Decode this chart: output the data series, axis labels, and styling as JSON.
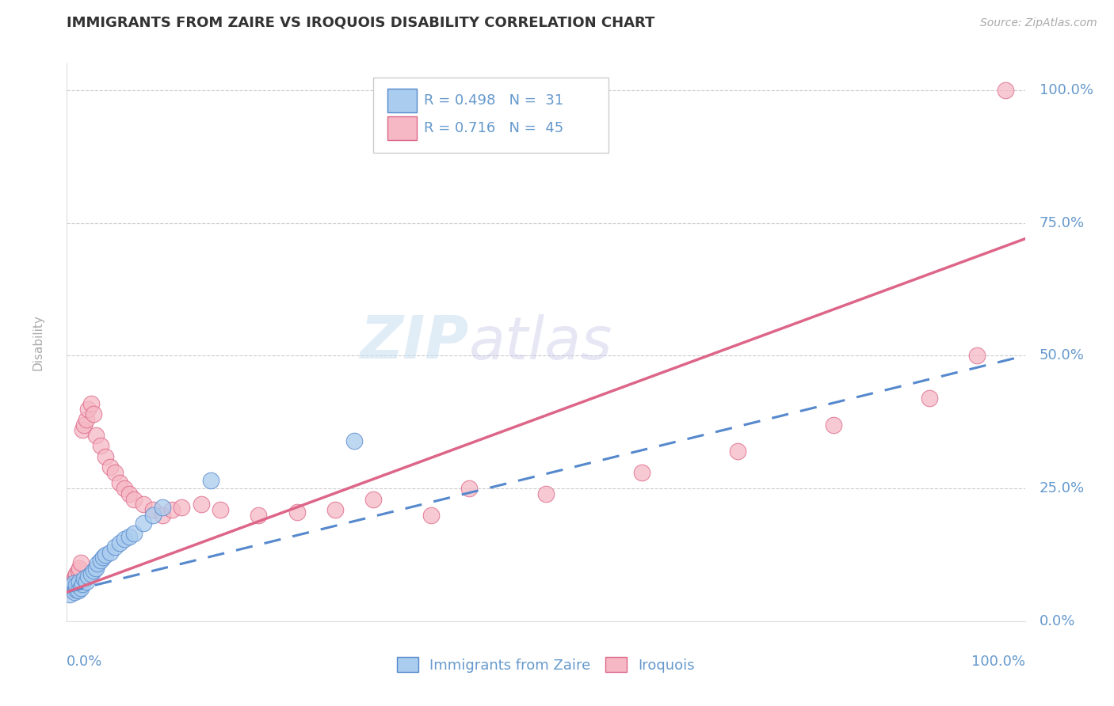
{
  "title": "IMMIGRANTS FROM ZAIRE VS IROQUOIS DISABILITY CORRELATION CHART",
  "source_text": "Source: ZipAtlas.com",
  "ylabel": "Disability",
  "xlim": [
    0,
    1
  ],
  "ylim": [
    0,
    1.05
  ],
  "ytick_labels": [
    "0.0%",
    "25.0%",
    "50.0%",
    "75.0%",
    "100.0%"
  ],
  "ytick_values": [
    0.0,
    0.25,
    0.5,
    0.75,
    1.0
  ],
  "xtick_labels": [
    "0.0%",
    "100.0%"
  ],
  "watermark_zip": "ZIP",
  "watermark_atlas": "atlas",
  "legend_r_blue": "R = 0.498",
  "legend_n_blue": "N =  31",
  "legend_r_pink": "R = 0.716",
  "legend_n_pink": "N =  45",
  "blue_scatter_color": "#aaccee",
  "pink_scatter_color": "#f5b8c4",
  "blue_line_color": "#5588cc",
  "pink_line_color": "#dd6688",
  "grid_color": "#cccccc",
  "bg_color": "#ffffff",
  "title_color": "#333333",
  "axis_color": "#6699cc",
  "blue_scatter_x": [
    0.003,
    0.005,
    0.007,
    0.008,
    0.01,
    0.01,
    0.012,
    0.013,
    0.015,
    0.016,
    0.018,
    0.02,
    0.022,
    0.025,
    0.028,
    0.03,
    0.032,
    0.035,
    0.038,
    0.04,
    0.045,
    0.05,
    0.055,
    0.06,
    0.065,
    0.07,
    0.08,
    0.09,
    0.1,
    0.15,
    0.3
  ],
  "blue_scatter_y": [
    0.05,
    0.065,
    0.072,
    0.055,
    0.06,
    0.068,
    0.058,
    0.075,
    0.062,
    0.07,
    0.08,
    0.075,
    0.085,
    0.09,
    0.095,
    0.1,
    0.108,
    0.115,
    0.12,
    0.125,
    0.13,
    0.14,
    0.148,
    0.155,
    0.16,
    0.165,
    0.185,
    0.2,
    0.215,
    0.265,
    0.34
  ],
  "pink_scatter_x": [
    0.002,
    0.004,
    0.005,
    0.006,
    0.008,
    0.009,
    0.01,
    0.012,
    0.013,
    0.015,
    0.016,
    0.018,
    0.02,
    0.022,
    0.025,
    0.028,
    0.03,
    0.035,
    0.04,
    0.045,
    0.05,
    0.055,
    0.06,
    0.065,
    0.07,
    0.08,
    0.09,
    0.1,
    0.11,
    0.12,
    0.14,
    0.16,
    0.2,
    0.24,
    0.28,
    0.32,
    0.38,
    0.42,
    0.5,
    0.6,
    0.7,
    0.8,
    0.9,
    0.95,
    0.98
  ],
  "pink_scatter_y": [
    0.06,
    0.065,
    0.068,
    0.075,
    0.08,
    0.085,
    0.09,
    0.095,
    0.1,
    0.11,
    0.36,
    0.37,
    0.38,
    0.4,
    0.41,
    0.39,
    0.35,
    0.33,
    0.31,
    0.29,
    0.28,
    0.26,
    0.25,
    0.24,
    0.23,
    0.22,
    0.21,
    0.2,
    0.21,
    0.215,
    0.22,
    0.21,
    0.2,
    0.205,
    0.21,
    0.23,
    0.2,
    0.25,
    0.24,
    0.28,
    0.32,
    0.37,
    0.42,
    0.5,
    1.0
  ],
  "blue_line_x": [
    0.0,
    1.0
  ],
  "blue_line_y": [
    0.055,
    0.5
  ],
  "pink_line_x": [
    0.0,
    1.0
  ],
  "pink_line_y": [
    0.055,
    0.72
  ]
}
